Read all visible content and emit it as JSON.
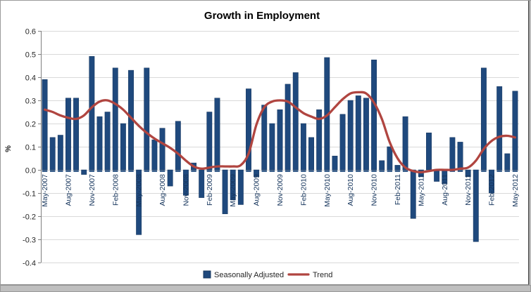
{
  "window": {
    "bottom_strip_color": "#bfbfbf"
  },
  "chart": {
    "title": "Growth in Employment",
    "y_axis_label": "%",
    "colors": {
      "bar": "#1F497D",
      "bar_edge": "#17375E",
      "trend": "#B04540",
      "grid": "#D9D9D9",
      "axis": "#808080",
      "month_label": "#17365D",
      "tick_text": "#262626",
      "title_text": "#000000"
    },
    "legend": {
      "series1_label": "Seasonally Adjusted",
      "series2_label": "Trend"
    }
  },
  "chart_data": {
    "type": "bar",
    "title": "Growth in Employment",
    "xlabel": "",
    "ylabel": "%",
    "ylim": [
      -0.4,
      0.6
    ],
    "y_tick_step": 0.1,
    "grid": true,
    "legend_position": "bottom",
    "x_tick_label_every": 3,
    "categories": [
      "May-2007",
      "Jun-2007",
      "Jul-2007",
      "Aug-2007",
      "Sep-2007",
      "Oct-2007",
      "Nov-2007",
      "Dec-2007",
      "Jan-2008",
      "Feb-2008",
      "Mar-2008",
      "Apr-2008",
      "May-2008",
      "Jun-2008",
      "Jul-2008",
      "Aug-2008",
      "Sep-2008",
      "Oct-2008",
      "Nov-2008",
      "Dec-2008",
      "Jan-2009",
      "Feb-2009",
      "Mar-2009",
      "Apr-2009",
      "May-2009",
      "Jun-2009",
      "Jul-2009",
      "Aug-2009",
      "Sep-2009",
      "Oct-2009",
      "Nov-2009",
      "Dec-2009",
      "Jan-2010",
      "Feb-2010",
      "Mar-2010",
      "Apr-2010",
      "May-2010",
      "Jun-2010",
      "Jul-2010",
      "Aug-2010",
      "Sep-2010",
      "Oct-2010",
      "Nov-2010",
      "Dec-2010",
      "Jan-2011",
      "Feb-2011",
      "Mar-2011",
      "Apr-2011",
      "May-2011",
      "Jun-2011",
      "Jul-2011",
      "Aug-2011",
      "Sep-2011",
      "Oct-2011",
      "Nov-2011",
      "Dec-2011",
      "Jan-2012",
      "Feb-2012",
      "Mar-2012",
      "Apr-2012",
      "May-2012"
    ],
    "series": [
      {
        "name": "Seasonally Adjusted",
        "type": "bar",
        "values": [
          0.39,
          0.14,
          0.15,
          0.31,
          0.31,
          -0.02,
          0.49,
          0.23,
          0.25,
          0.44,
          0.2,
          0.43,
          -0.28,
          0.44,
          0.13,
          0.18,
          -0.07,
          0.21,
          -0.11,
          0.03,
          -0.12,
          0.25,
          0.31,
          -0.19,
          -0.13,
          -0.15,
          0.35,
          -0.03,
          0.28,
          0.2,
          0.26,
          0.37,
          0.42,
          0.2,
          0.14,
          0.26,
          0.485,
          0.06,
          0.24,
          0.3,
          0.32,
          0.31,
          0.475,
          0.04,
          0.1,
          0.02,
          0.23,
          -0.21,
          -0.03,
          0.16,
          -0.05,
          -0.06,
          0.14,
          0.12,
          -0.03,
          -0.31,
          0.44,
          -0.1,
          0.36,
          0.07,
          0.34
        ]
      },
      {
        "name": "Trend",
        "type": "line",
        "values": [
          0.26,
          0.25,
          0.235,
          0.225,
          0.22,
          0.235,
          0.27,
          0.295,
          0.3,
          0.285,
          0.26,
          0.225,
          0.19,
          0.16,
          0.135,
          0.115,
          0.095,
          0.07,
          0.04,
          0.015,
          0.005,
          0.01,
          0.015,
          0.015,
          0.015,
          0.02,
          0.07,
          0.195,
          0.27,
          0.295,
          0.3,
          0.295,
          0.27,
          0.245,
          0.23,
          0.22,
          0.235,
          0.27,
          0.305,
          0.33,
          0.335,
          0.33,
          0.29,
          0.22,
          0.12,
          0.05,
          0.01,
          -0.005,
          -0.01,
          -0.005,
          0.0,
          0.0,
          0.0,
          0.005,
          0.01,
          0.04,
          0.09,
          0.125,
          0.143,
          0.147,
          0.14
        ]
      }
    ]
  }
}
